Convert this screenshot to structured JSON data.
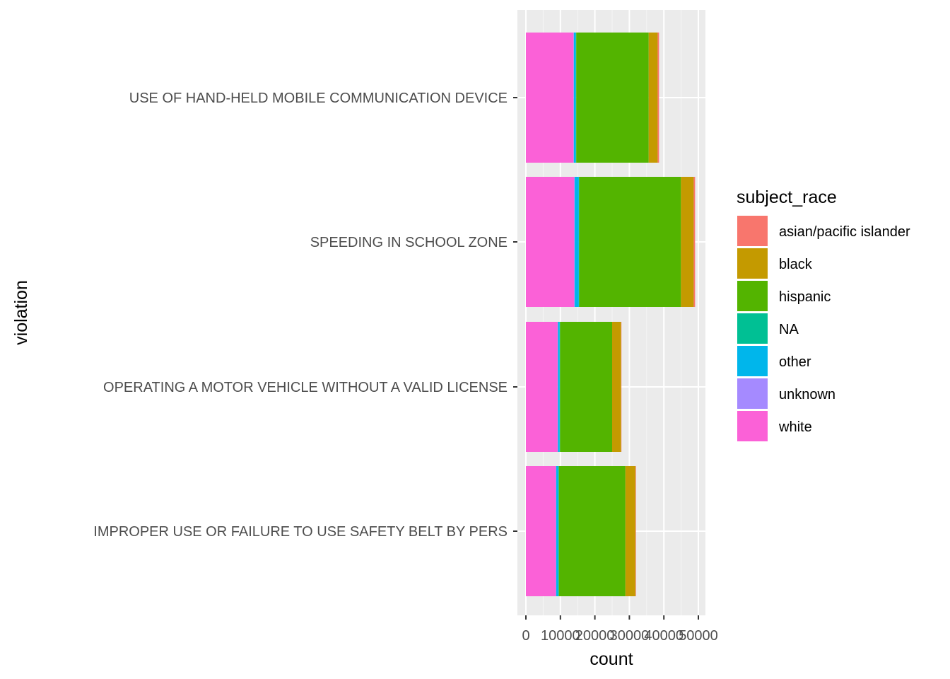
{
  "chart_data": {
    "type": "bar",
    "orientation": "horizontal",
    "stacked": true,
    "xlabel": "count",
    "ylabel": "violation",
    "xlim": [
      0,
      51000
    ],
    "x_ticks": [
      0,
      10000,
      20000,
      30000,
      40000,
      50000
    ],
    "x_tick_labels": [
      "0",
      "10000",
      "20000",
      "30000",
      "40000",
      "50000"
    ],
    "grid": true,
    "categories": [
      "USE OF HAND-HELD MOBILE COMMUNICATION DEVICE",
      "SPEEDING IN SCHOOL ZONE",
      "OPERATING A MOTOR VEHICLE WITHOUT A VALID LICENSE",
      "IMPROPER USE OR FAILURE TO USE SAFETY BELT BY PERS"
    ],
    "stack_order": [
      "white",
      "unknown",
      "other",
      "NA",
      "hispanic",
      "black",
      "asian/pacific islander"
    ],
    "series": [
      {
        "name": "asian/pacific islander",
        "color": "#F8766D",
        "values": [
          400,
          400,
          100,
          150
        ]
      },
      {
        "name": "black",
        "color": "#C49A00",
        "values": [
          2600,
          3700,
          2600,
          2900
        ]
      },
      {
        "name": "hispanic",
        "color": "#53B400",
        "values": [
          21000,
          29500,
          15100,
          19300
        ]
      },
      {
        "name": "NA",
        "color": "#00C094",
        "values": [
          100,
          100,
          100,
          100
        ]
      },
      {
        "name": "other",
        "color": "#00B6EB",
        "values": [
          600,
          1200,
          500,
          650
        ]
      },
      {
        "name": "unknown",
        "color": "#A58AFF",
        "values": [
          100,
          150,
          100,
          100
        ]
      },
      {
        "name": "white",
        "color": "#FB61D7",
        "values": [
          13800,
          14000,
          9200,
          8700
        ]
      }
    ],
    "legend": {
      "title": "subject_race",
      "position": "right",
      "entries": [
        "asian/pacific islander",
        "black",
        "hispanic",
        "NA",
        "other",
        "unknown",
        "white"
      ]
    }
  }
}
